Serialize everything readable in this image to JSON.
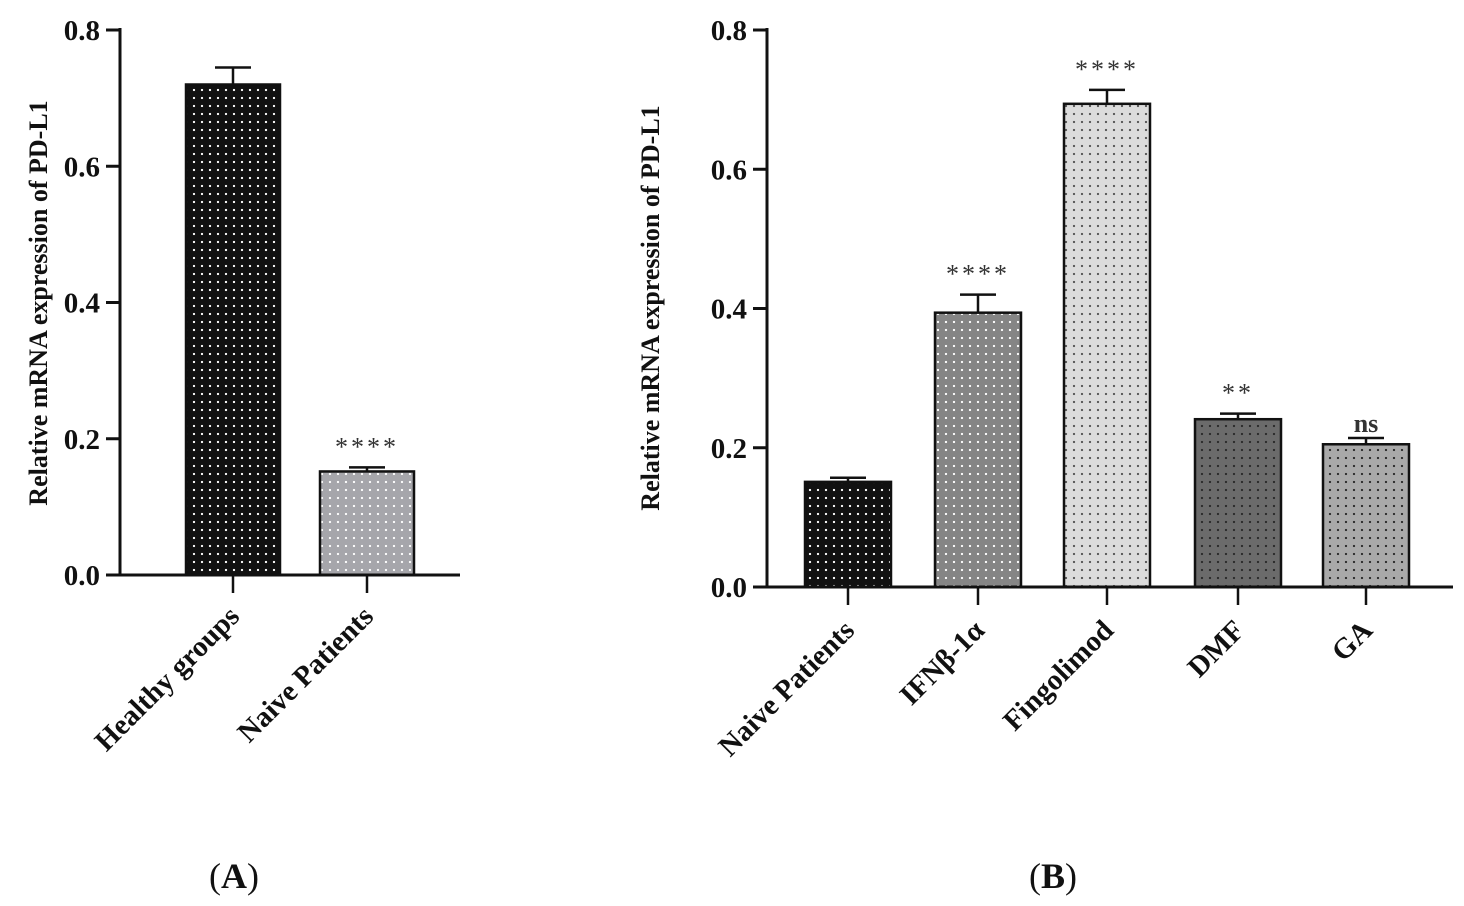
{
  "chart_data": [
    {
      "panel": "A",
      "type": "bar",
      "ylabel": "Relative mRNA expression of PD-L1",
      "xlabel": "",
      "ylim": [
        0,
        0.8
      ],
      "yticks": [
        "0.0",
        "0.2",
        "0.4",
        "0.6",
        "0.8"
      ],
      "ytick_values": [
        0,
        0.2,
        0.4,
        0.6,
        0.8
      ],
      "categories": [
        "Healthy groups",
        "Naive Patients"
      ],
      "values": [
        0.72,
        0.152
      ],
      "errors": [
        0.025,
        0.006
      ],
      "significance": [
        "",
        "****"
      ],
      "colors": [
        "#111111",
        "#a6a6ab"
      ],
      "dot_colors": [
        "#ffffff",
        "#ffffff"
      ]
    },
    {
      "panel": "B",
      "type": "bar",
      "ylabel": "Relative mRNA expression of PD-L1",
      "xlabel": "",
      "ylim": [
        0,
        0.8
      ],
      "yticks": [
        "0.0",
        "0.2",
        "0.4",
        "0.6",
        "0.8"
      ],
      "ytick_values": [
        0,
        0.2,
        0.4,
        0.6,
        0.8
      ],
      "categories": [
        "Naive Patients",
        "IFNβ-1α",
        "Fingolimod",
        "DMF",
        "GA"
      ],
      "values": [
        0.151,
        0.394,
        0.694,
        0.241,
        0.205
      ],
      "errors": [
        0.006,
        0.026,
        0.02,
        0.008,
        0.009
      ],
      "significance": [
        "",
        "****",
        "****",
        "**",
        "ns"
      ],
      "colors": [
        "#111111",
        "#858585",
        "#dcdcdc",
        "#6b6b6b",
        "#a9a9a9"
      ],
      "dot_colors": [
        "#ffffff",
        "#ffffff",
        "#555555",
        "#2a2a2a",
        "#2a2a2a"
      ]
    }
  ],
  "panel_labels": [
    "A",
    "B"
  ]
}
